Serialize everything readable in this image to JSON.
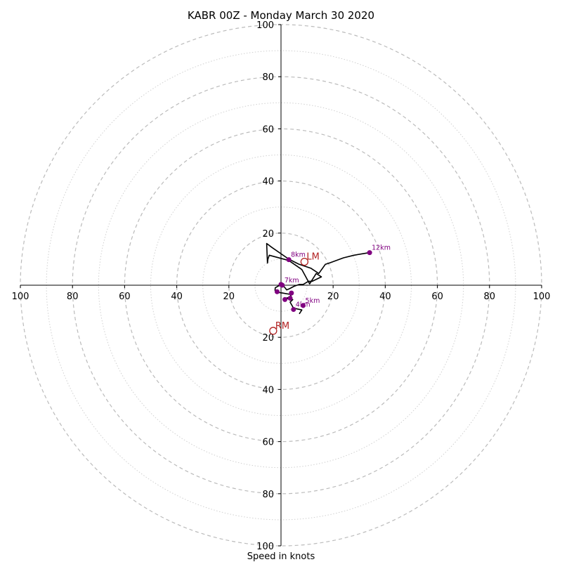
{
  "chart_data": {
    "type": "hodograph",
    "title": "KABR 00Z - Monday March 30 2020",
    "xlabel": "Speed in knots",
    "units": "knots",
    "max_speed": 100,
    "ring_major_interval": 20,
    "ring_minor_interval": 10,
    "tick_labels": [
      "100",
      "80",
      "60",
      "40",
      "20",
      "20",
      "40",
      "60",
      "80",
      "100"
    ],
    "grid": true,
    "colors": {
      "trace": "#000000",
      "height_markers": "#800080",
      "motion_markers": "#b22222",
      "major_rings": "#bbbbbb",
      "minor_rings": "#d0d0d0"
    },
    "wind_trace": [
      [
        7,
        -11
      ],
      [
        8,
        -9.5
      ],
      [
        4.8,
        -8.8
      ],
      [
        3.5,
        -6.5
      ],
      [
        4.5,
        -5.5
      ],
      [
        1.6,
        -5
      ],
      [
        4,
        -4.5
      ],
      [
        3.5,
        -3.5
      ],
      [
        0.5,
        -3
      ],
      [
        -1.5,
        -2.7
      ],
      [
        -2.3,
        -2
      ],
      [
        -2.2,
        -1
      ],
      [
        -1,
        -0.3
      ],
      [
        0.5,
        0.3
      ],
      [
        2.2,
        -1.8
      ],
      [
        3.5,
        -1.2
      ],
      [
        5,
        -0.4
      ],
      [
        7,
        0.3
      ],
      [
        8.5,
        0.3
      ],
      [
        10.5,
        1.5
      ],
      [
        12,
        1.5
      ],
      [
        15.5,
        3.2
      ],
      [
        13.5,
        4.5
      ],
      [
        11,
        0.5
      ],
      [
        8,
        6
      ],
      [
        3,
        9.5
      ],
      [
        -4.5,
        11.5
      ],
      [
        -5,
        10
      ],
      [
        -5.2,
        8.5
      ],
      [
        -5.5,
        16
      ],
      [
        -3.5,
        14.5
      ],
      [
        3,
        10
      ],
      [
        7,
        8
      ],
      [
        11.5,
        6.5
      ],
      [
        14.5,
        4.5
      ],
      [
        17,
        8
      ],
      [
        18.5,
        8.5
      ],
      [
        24,
        10.5
      ],
      [
        28,
        11.5
      ],
      [
        34,
        12.5
      ]
    ],
    "height_markers": [
      {
        "label": "",
        "u": -1.5,
        "v": -2.5
      },
      {
        "label": "",
        "u": 0,
        "v": 0.3
      },
      {
        "label": "",
        "u": 1.5,
        "v": -5.5
      },
      {
        "label": "",
        "u": 3.5,
        "v": -5
      },
      {
        "label": "",
        "u": 4,
        "v": -3
      },
      {
        "label": "4km",
        "u": 4.8,
        "v": -9.3
      },
      {
        "label": "5km",
        "u": 8.5,
        "v": -7.8
      },
      {
        "label": "7km",
        "u": 0.5,
        "v": 0
      },
      {
        "label": "8km",
        "u": 3,
        "v": 9.8
      },
      {
        "label": "12km",
        "u": 34,
        "v": 12.5
      }
    ],
    "storm_motion": [
      {
        "label": "LM",
        "u": 9,
        "v": 9
      },
      {
        "label": "RM",
        "u": -3,
        "v": -17.5
      }
    ]
  }
}
